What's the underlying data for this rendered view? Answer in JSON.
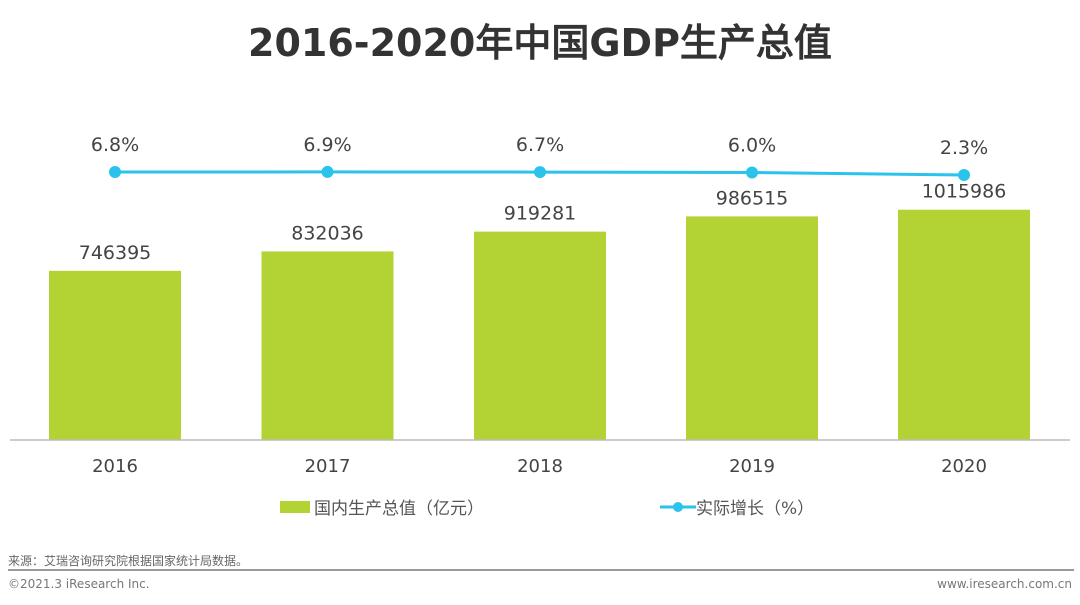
{
  "chart_data": {
    "type": "bar",
    "title": "2016-2020年中国GDP生产总值",
    "categories": [
      "2016",
      "2017",
      "2018",
      "2019",
      "2020"
    ],
    "series": [
      {
        "name": "国内生产总值（亿元）",
        "type": "bar",
        "values": [
          746395,
          832036,
          919281,
          986515,
          1015986
        ],
        "labels": [
          "746395",
          "832036",
          "919281",
          "986515",
          "1015986"
        ],
        "color": "#b3d335"
      },
      {
        "name": "实际增长（%）",
        "type": "line",
        "values": [
          6.8,
          6.9,
          6.7,
          6.0,
          2.3
        ],
        "labels": [
          "6.8%",
          "6.9%",
          "6.7%",
          "6.0%",
          "2.3%"
        ],
        "color": "#29c3ec"
      }
    ],
    "ylim": [
      0,
      1500000
    ],
    "grid": false,
    "legend": "bottom"
  },
  "source": "来源：艾瑞咨询研究院根据国家统计局数据。",
  "copyright": "©2021.3 iResearch Inc.",
  "website": "www.iresearch.com.cn"
}
